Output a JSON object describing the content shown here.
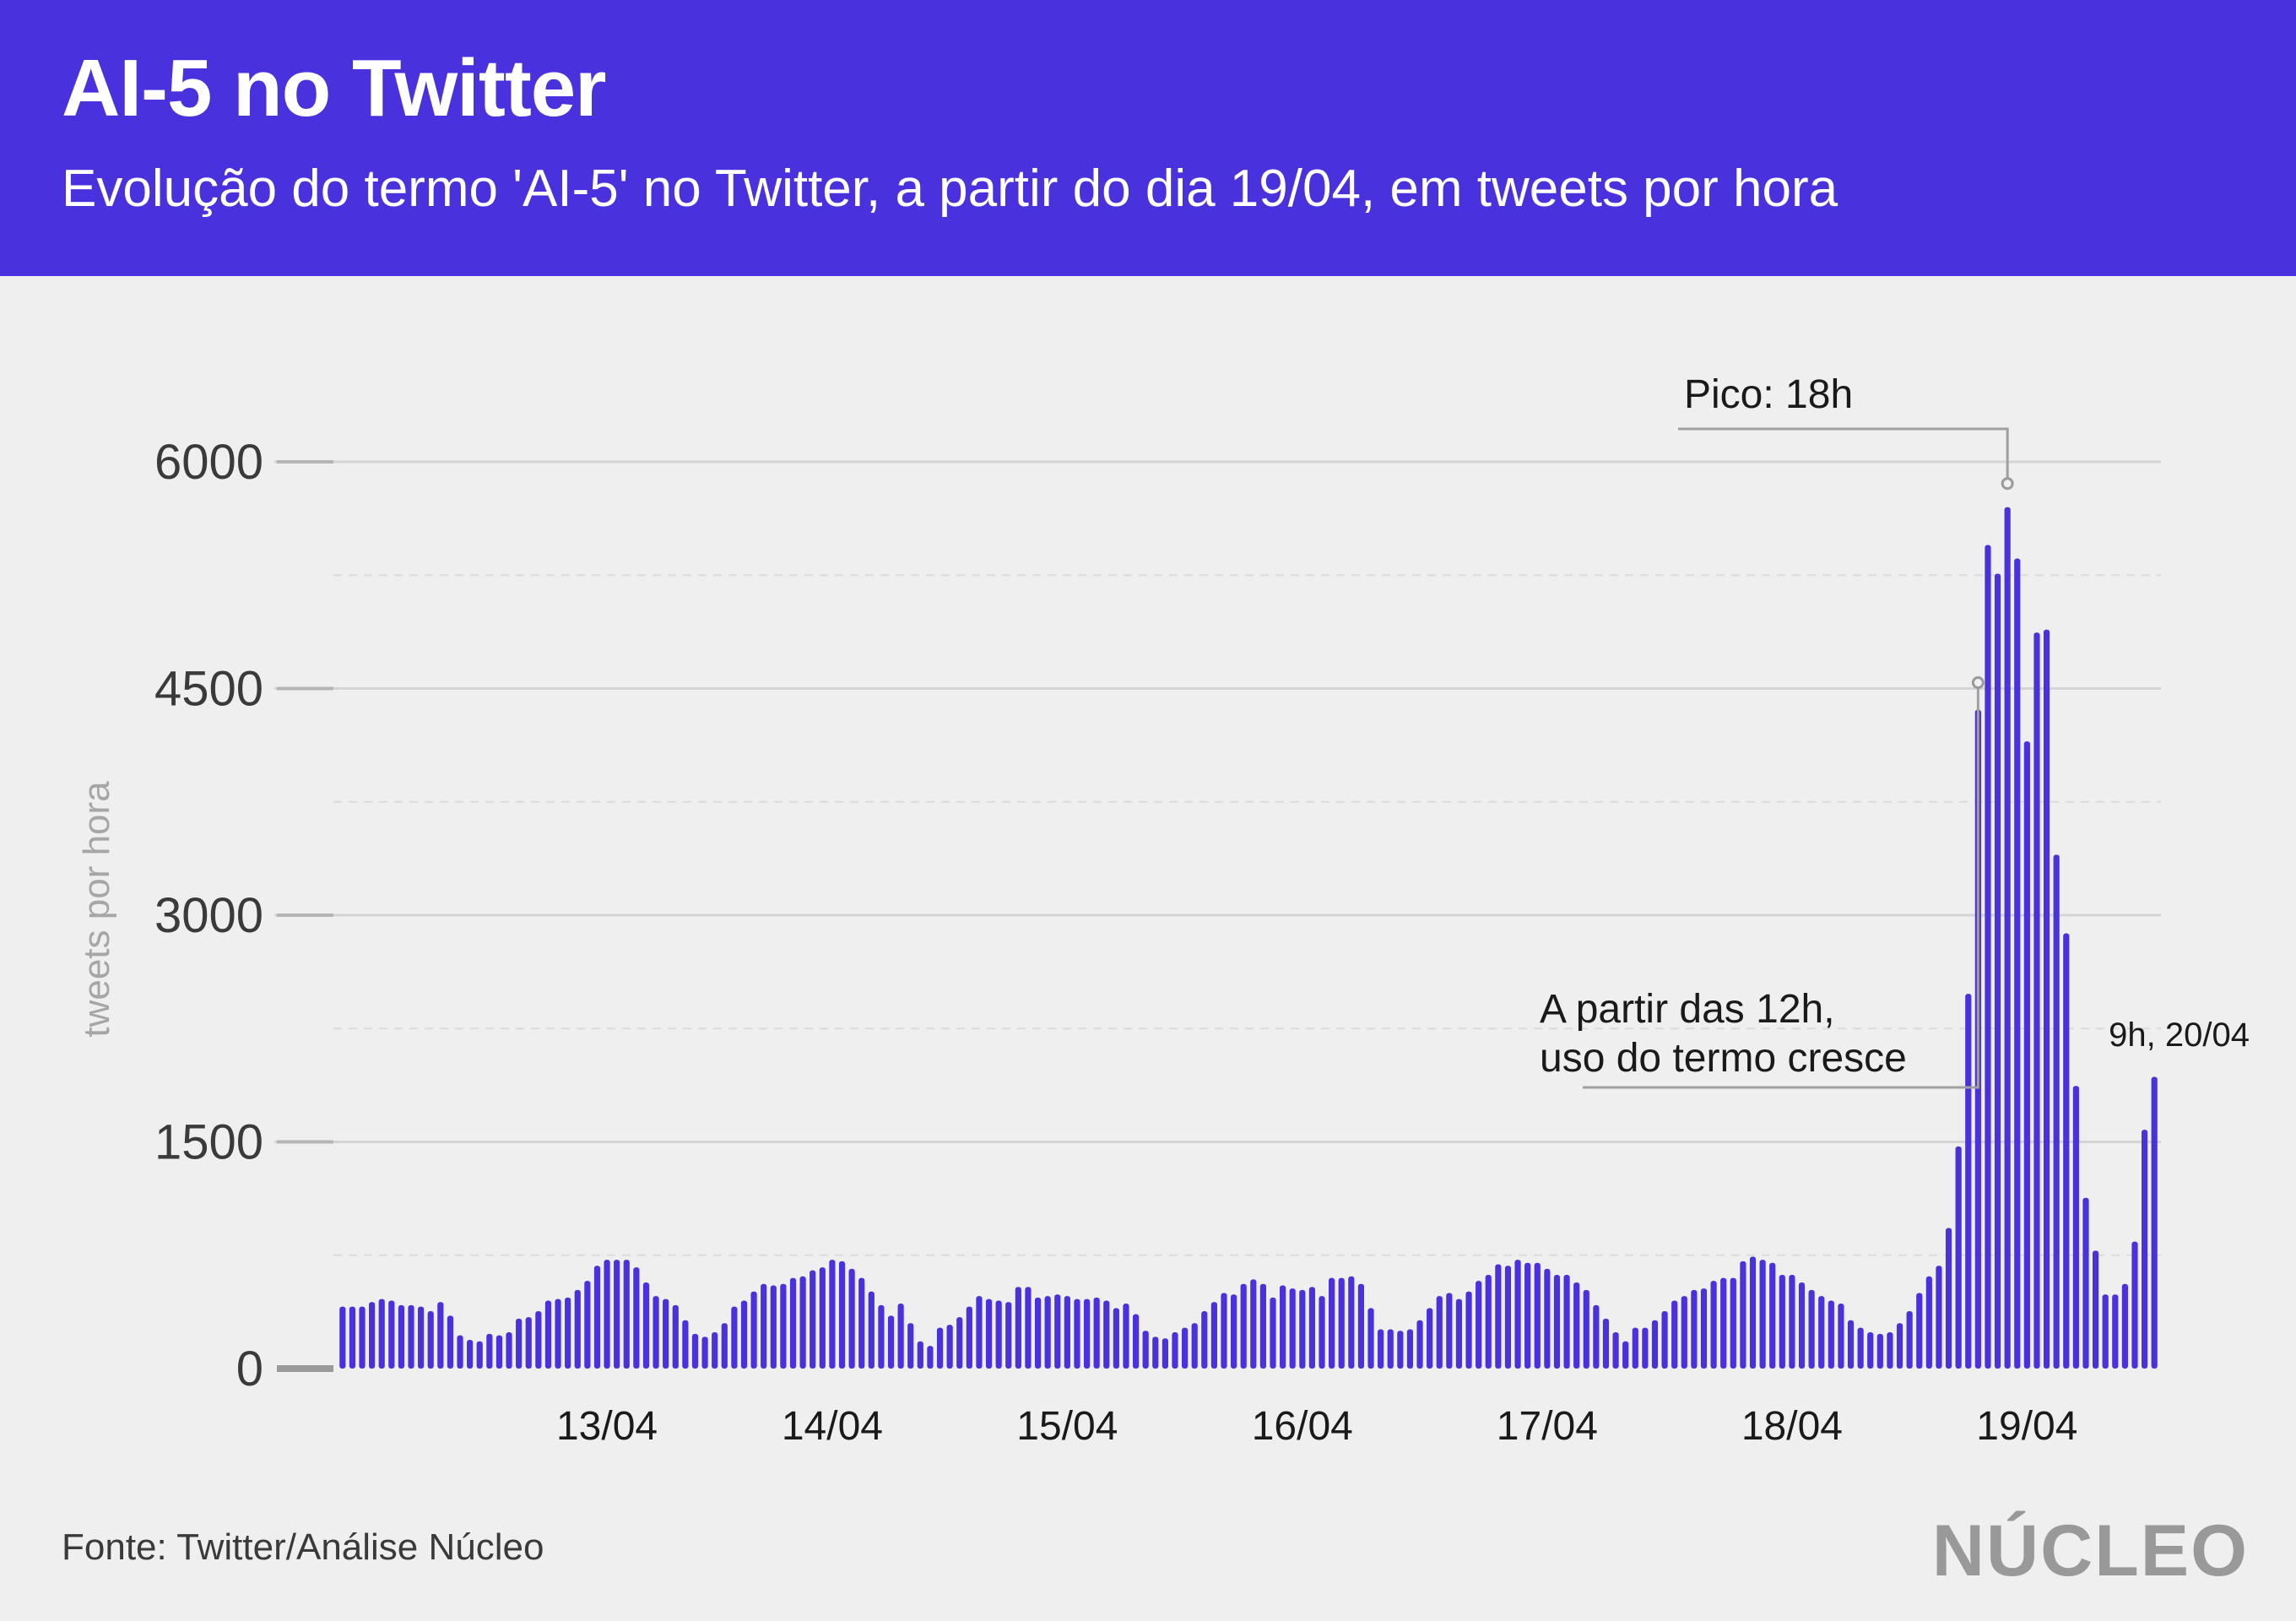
{
  "header": {
    "title": "AI-5 no Twitter",
    "subtitle": "Evolução do termo 'AI-5' no Twitter, a partir do dia 19/04, em tweets por hora"
  },
  "footer": {
    "source": "Fonte: Twitter/Análise Núcleo",
    "logo": "NÚCLEO"
  },
  "colors": {
    "header_bg": "#4a31de",
    "bar": "#4a31de",
    "background": "#efefef"
  },
  "chart_data": {
    "type": "bar",
    "ylabel": "tweets por hora",
    "ylim": [
      0,
      6000
    ],
    "yticks": [
      0,
      1500,
      3000,
      4500,
      6000
    ],
    "grid": true,
    "x_tick_labels": [
      {
        "label": "13/04",
        "index": 27
      },
      {
        "label": "14/04",
        "index": 50
      },
      {
        "label": "15/04",
        "index": 74
      },
      {
        "label": "16/04",
        "index": 98
      },
      {
        "label": "17/04",
        "index": 123
      },
      {
        "label": "18/04",
        "index": 148
      },
      {
        "label": "19/04",
        "index": 172
      }
    ],
    "values": [
      410,
      410,
      410,
      440,
      460,
      450,
      420,
      420,
      410,
      380,
      440,
      350,
      220,
      190,
      180,
      230,
      220,
      240,
      330,
      340,
      380,
      450,
      460,
      470,
      520,
      580,
      680,
      720,
      720,
      720,
      670,
      570,
      480,
      460,
      420,
      320,
      230,
      210,
      240,
      300,
      410,
      450,
      510,
      560,
      550,
      560,
      600,
      610,
      650,
      670,
      720,
      710,
      660,
      600,
      510,
      420,
      350,
      430,
      300,
      180,
      150,
      270,
      290,
      340,
      410,
      480,
      460,
      450,
      440,
      540,
      540,
      470,
      480,
      490,
      480,
      460,
      460,
      470,
      450,
      400,
      430,
      360,
      250,
      210,
      200,
      240,
      270,
      300,
      380,
      440,
      500,
      490,
      560,
      590,
      560,
      470,
      550,
      530,
      520,
      540,
      480,
      600,
      600,
      610,
      560,
      400,
      260,
      260,
      250,
      260,
      320,
      400,
      480,
      500,
      460,
      510,
      580,
      620,
      690,
      680,
      720,
      700,
      700,
      660,
      620,
      620,
      570,
      520,
      420,
      330,
      240,
      180,
      270,
      270,
      320,
      380,
      450,
      480,
      520,
      530,
      580,
      600,
      600,
      710,
      740,
      720,
      700,
      620,
      620,
      570,
      520,
      480,
      450,
      430,
      320,
      270,
      240,
      230,
      240,
      300,
      380,
      500,
      610,
      680,
      930,
      1470,
      2480,
      4360,
      5450,
      5260,
      5700,
      5360,
      4150,
      4870,
      4890,
      3400,
      2880,
      1870,
      1130,
      780,
      490,
      490,
      560,
      840,
      1580,
      1930
    ],
    "annotations": [
      {
        "text": "Pico: 18h"
      },
      {
        "lines": [
          "A partir das 12h,",
          "uso do termo cresce"
        ]
      },
      {
        "text": "9h, 20/04"
      }
    ]
  }
}
